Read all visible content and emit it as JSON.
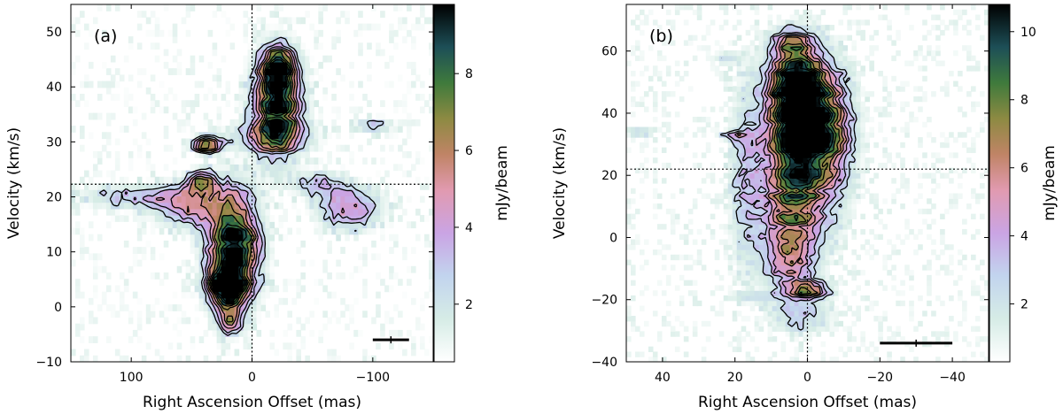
{
  "chart_data": [
    {
      "type": "heatmap",
      "panel_label": "(a)",
      "xlabel": "Right Ascension Offset (mas)",
      "ylabel": "Velocity (km/s)",
      "xlim": [
        150,
        -150
      ],
      "ylim": [
        -10,
        55
      ],
      "x_ticks": [
        100,
        0,
        -100
      ],
      "x_tick_labels": [
        "100",
        "0",
        "−100"
      ],
      "y_ticks": [
        -10,
        0,
        10,
        20,
        30,
        40,
        50
      ],
      "y_tick_labels": [
        "−10",
        "0",
        "10",
        "20",
        "30",
        "40",
        "50"
      ],
      "colorbar": {
        "label": "mJy/beam",
        "range": [
          0.5,
          9.8
        ],
        "ticks": [
          2,
          4,
          6,
          8
        ],
        "tick_labels": [
          "2",
          "4",
          "6",
          "8"
        ]
      },
      "reference_lines": {
        "x": 0,
        "y": 22.3
      },
      "beam_marker": {
        "x_center": -115,
        "x_halfwidth": 15,
        "y": -6
      },
      "emission_components": [
        {
          "x": 15,
          "y": 11,
          "sx": 14,
          "sy": 6.5,
          "peak": 9.5
        },
        {
          "x": 21,
          "y": 4.5,
          "sx": 10,
          "sy": 2,
          "peak": 9
        },
        {
          "x": 20,
          "y": 1,
          "sx": 9,
          "sy": 2.5,
          "peak": 4
        },
        {
          "x": 18,
          "y": -3,
          "sx": 6,
          "sy": 1.5,
          "peak": 3
        },
        {
          "x": 50,
          "y": 18.5,
          "sx": 20,
          "sy": 2.5,
          "peak": 5
        },
        {
          "x": 100,
          "y": 20,
          "sx": 30,
          "sy": 1.5,
          "peak": 2.5
        },
        {
          "x": 42,
          "y": 23,
          "sx": 8,
          "sy": 1.2,
          "peak": 5.5
        },
        {
          "x": -80,
          "y": 18,
          "sx": 18,
          "sy": 2.5,
          "peak": 4.5
        },
        {
          "x": -55,
          "y": 22.5,
          "sx": 15,
          "sy": 1.5,
          "peak": 2.5
        },
        {
          "x": -21,
          "y": 37,
          "sx": 13,
          "sy": 6,
          "peak": 9.5
        },
        {
          "x": -22,
          "y": 43.5,
          "sx": 8,
          "sy": 2.5,
          "peak": 6.5
        },
        {
          "x": 38,
          "y": 29.5,
          "sx": 8,
          "sy": 1,
          "peak": 7
        },
        {
          "x": -15,
          "y": 31,
          "sx": 25,
          "sy": 2,
          "peak": 2.5
        },
        {
          "x": -100,
          "y": 33,
          "sx": 10,
          "sy": 1,
          "peak": 2.5
        }
      ]
    },
    {
      "type": "heatmap",
      "panel_label": "(b)",
      "xlabel": "Right Ascension Offset (mas)",
      "ylabel": "Velocity (km/s)",
      "xlim": [
        50,
        -50
      ],
      "ylim": [
        -40,
        75
      ],
      "x_ticks": [
        40,
        20,
        0,
        -20,
        -40
      ],
      "x_tick_labels": [
        "40",
        "20",
        "0",
        "−20",
        "−40"
      ],
      "y_ticks": [
        -40,
        -20,
        0,
        20,
        40,
        60
      ],
      "y_tick_labels": [
        "−40",
        "−20",
        "0",
        "20",
        "40",
        "60"
      ],
      "colorbar": {
        "label": "mJy/beam",
        "range": [
          0.3,
          10.8
        ],
        "ticks": [
          2,
          4,
          6,
          8,
          10
        ],
        "tick_labels": [
          "2",
          "4",
          "6",
          "8",
          "10"
        ]
      },
      "reference_lines": {
        "x": 0,
        "y": 22
      },
      "beam_marker": {
        "x_center": -30,
        "x_halfwidth": 10,
        "y": -34
      },
      "emission_components": [
        {
          "x": 1,
          "y": 40,
          "sx": 6,
          "sy": 9,
          "peak": 10.5
        },
        {
          "x": 3,
          "y": 50,
          "sx": 5,
          "sy": 8,
          "peak": 9
        },
        {
          "x": 2,
          "y": 25,
          "sx": 6,
          "sy": 8,
          "peak": 8
        },
        {
          "x": 4,
          "y": 8,
          "sx": 6,
          "sy": 9,
          "peak": 6.5
        },
        {
          "x": 5,
          "y": -8,
          "sx": 5,
          "sy": 6,
          "peak": 4.5
        },
        {
          "x": 0,
          "y": -17,
          "sx": 4,
          "sy": 2,
          "peak": 6.5
        },
        {
          "x": 2,
          "y": -25,
          "sx": 6,
          "sy": 4,
          "peak": 2.5
        },
        {
          "x": 4,
          "y": 62,
          "sx": 4,
          "sy": 4,
          "peak": 4
        },
        {
          "x": -8,
          "y": 32,
          "sx": 4,
          "sy": 15,
          "peak": 3
        },
        {
          "x": 17,
          "y": 20,
          "sx": 3,
          "sy": 20,
          "peak": 2.5
        },
        {
          "x": 22,
          "y": 58,
          "sx": 3,
          "sy": 1.2,
          "peak": 2.5
        },
        {
          "x": 20,
          "y": 33,
          "sx": 3,
          "sy": 1,
          "peak": 2.5
        },
        {
          "x": 45,
          "y": 34,
          "sx": 2,
          "sy": 1,
          "peak": 2.2
        },
        {
          "x": 14,
          "y": -19,
          "sx": 6,
          "sy": 1,
          "peak": 2.2
        }
      ]
    }
  ]
}
